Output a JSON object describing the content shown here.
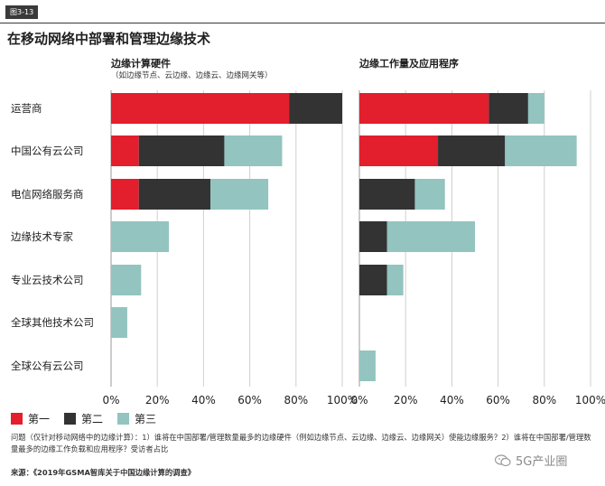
{
  "figure_tag": "图3-13",
  "title": "在移动网络中部署和管理边缘技术",
  "legend": [
    {
      "label": "第一",
      "color": "#e31e2d"
    },
    {
      "label": "第二",
      "color": "#333333"
    },
    {
      "label": "第三",
      "color": "#93c4bf"
    }
  ],
  "note": "问题（仅针对移动网络中的边缘计算）：1）谁将在中国部署/管理数量最多的边缘硬件（例如边缘节点、云边缘、边缘云、边缘网关）使能边缘服务？2）谁将在中国部署/管理数量最多的边缘工作负载和应用程序？受访者占比",
  "source_label": "来源：",
  "source_text": "《2019年GSMA智库关于中国边缘计算的调查》",
  "watermark": "5G产业圈",
  "chart_data": [
    {
      "type": "bar",
      "orientation": "horizontal",
      "stacked": true,
      "title": "边缘计算硬件",
      "subtitle": "（如边缘节点、云边缘、边缘云、边缘网关等）",
      "categories": [
        "运营商",
        "中国公有云公司",
        "电信网络服务商",
        "边缘技术专家",
        "专业云技术公司",
        "全球其他技术公司",
        "全球公有云公司"
      ],
      "series": [
        {
          "name": "第一",
          "color": "#e31e2d",
          "values": [
            77,
            12,
            12,
            0,
            0,
            0,
            0
          ]
        },
        {
          "name": "第二",
          "color": "#333333",
          "values": [
            23,
            37,
            31,
            0,
            0,
            0,
            0
          ]
        },
        {
          "name": "第三",
          "color": "#93c4bf",
          "values": [
            0,
            25,
            25,
            25,
            13,
            7,
            0
          ]
        }
      ],
      "xlim": [
        0,
        100
      ],
      "xticks": [
        "0%",
        "20%",
        "40%",
        "60%",
        "80%",
        "100%"
      ],
      "grid": true,
      "legend_position": "bottom-left"
    },
    {
      "type": "bar",
      "orientation": "horizontal",
      "stacked": true,
      "title": "边缘工作量及应用程序",
      "subtitle": "",
      "categories": [
        "运营商",
        "中国公有云公司",
        "电信网络服务商",
        "边缘技术专家",
        "专业云技术公司",
        "全球其他技术公司",
        "全球公有云公司"
      ],
      "series": [
        {
          "name": "第一",
          "color": "#e31e2d",
          "values": [
            56,
            34,
            0,
            0,
            0,
            0,
            0
          ]
        },
        {
          "name": "第二",
          "color": "#333333",
          "values": [
            17,
            29,
            24,
            12,
            12,
            0,
            0
          ]
        },
        {
          "name": "第三",
          "color": "#93c4bf",
          "values": [
            7,
            31,
            13,
            38,
            7,
            0,
            7
          ]
        }
      ],
      "xlim": [
        0,
        100
      ],
      "xticks": [
        "0%",
        "20%",
        "40%",
        "60%",
        "80%",
        "100%"
      ],
      "grid": true,
      "legend_position": "bottom-left"
    }
  ]
}
